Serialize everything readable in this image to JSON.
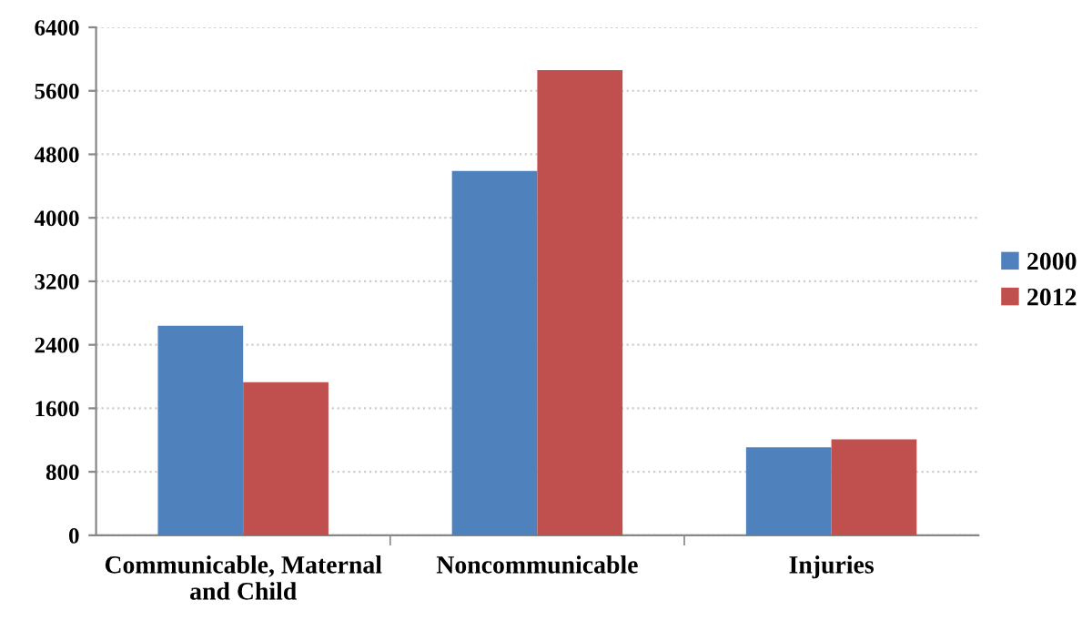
{
  "chart_data": {
    "type": "bar",
    "categories": [
      "Communicable, Maternal\nand Child",
      "Noncommunicable",
      "Injuries"
    ],
    "series": [
      {
        "name": "2000",
        "color": "#4f81bd",
        "values": [
          2640,
          4590,
          1110
        ]
      },
      {
        "name": "2012",
        "color": "#c0504d",
        "values": [
          1930,
          5860,
          1210
        ]
      }
    ],
    "ylim": [
      0,
      6400
    ],
    "yticks": [
      0,
      800,
      1600,
      2400,
      3200,
      4000,
      4800,
      5600,
      6400
    ],
    "grid": "y",
    "legend": "right"
  }
}
